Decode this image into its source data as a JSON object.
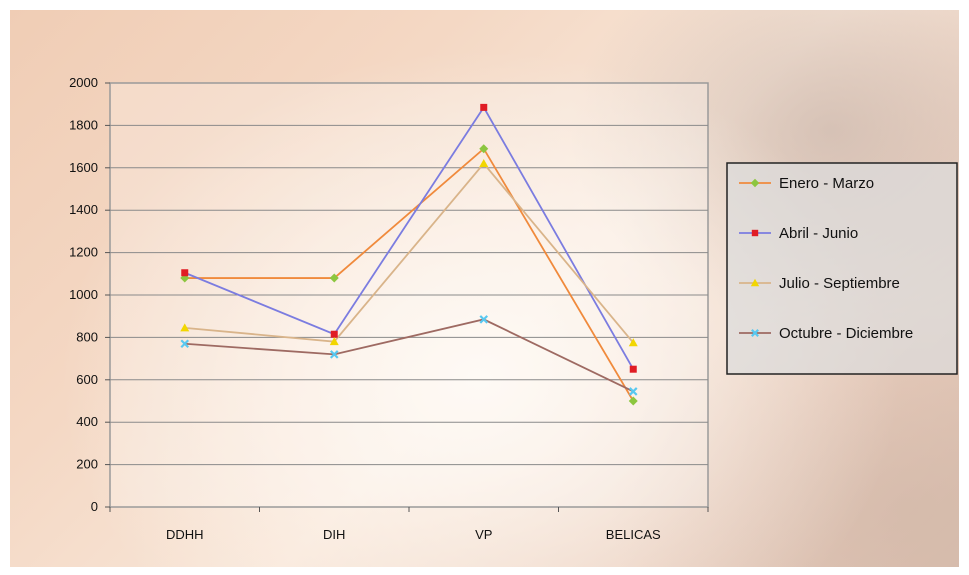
{
  "chart_data": {
    "type": "line",
    "title": "",
    "xlabel": "",
    "ylabel": "",
    "categories": [
      "DDHH",
      "DIH",
      "VP",
      "BELICAS"
    ],
    "ylim": [
      0,
      2000
    ],
    "yticks": [
      0,
      200,
      400,
      600,
      800,
      1000,
      1200,
      1400,
      1600,
      1800,
      2000
    ],
    "grid": true,
    "legend_position": "right",
    "series": [
      {
        "name": "Enero - Marzo",
        "values": [
          1080,
          1080,
          1690,
          500
        ],
        "line_color": "#f08a3c",
        "marker_color": "#8cc63f",
        "marker": "diamond"
      },
      {
        "name": "Abril - Junio",
        "values": [
          1105,
          815,
          1885,
          650
        ],
        "line_color": "#7b7ce0",
        "marker_color": "#e01c24",
        "marker": "square"
      },
      {
        "name": "Julio - Septiembre",
        "values": [
          845,
          780,
          1620,
          775
        ],
        "line_color": "#d9b48a",
        "marker_color": "#f2d600",
        "marker": "triangle"
      },
      {
        "name": "Octubre - Diciembre",
        "values": [
          770,
          720,
          885,
          545
        ],
        "line_color": "#9e6a62",
        "marker_color": "#58c8f0",
        "marker": "x"
      }
    ]
  }
}
